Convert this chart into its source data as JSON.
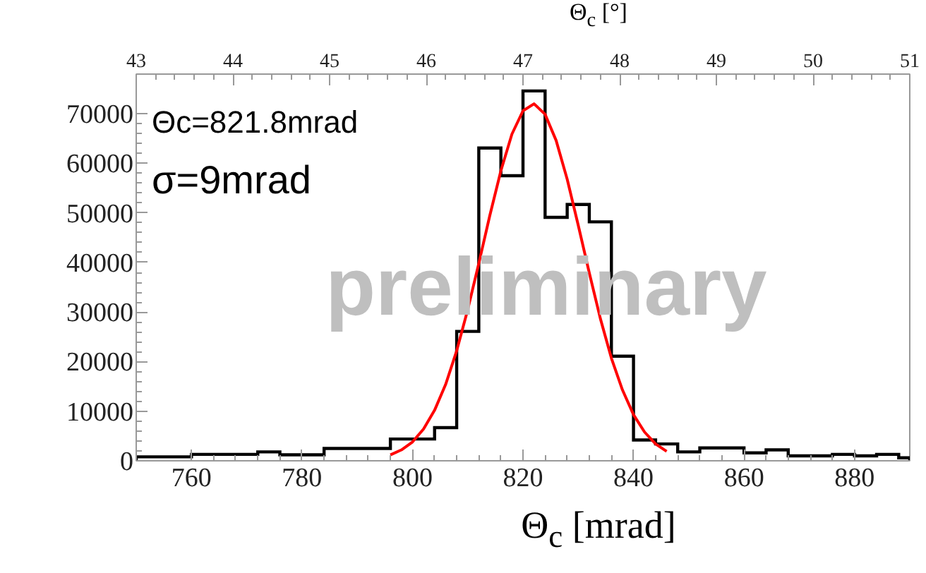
{
  "chart_data": {
    "type": "histogram",
    "xlabel": "Θ$_{c}$ [mrad]",
    "x2label": "Θ$_{c}$ [°]",
    "bins": [
      750,
      760,
      772,
      776,
      784,
      796,
      800,
      804,
      808,
      812,
      816,
      820,
      824,
      828,
      832,
      836,
      840,
      844,
      848,
      852,
      856,
      860,
      864,
      868,
      872,
      876,
      880,
      884,
      888,
      890
    ],
    "values": [
      800,
      1300,
      1800,
      1200,
      2500,
      4400,
      4400,
      6700,
      26100,
      63100,
      57500,
      74600,
      49100,
      51700,
      48200,
      21100,
      4200,
      3400,
      1800,
      2600,
      2600,
      1600,
      2200,
      1000,
      1000,
      1300,
      1000,
      1300,
      600
    ],
    "color": "#000000",
    "series": [
      {
        "type": "line",
        "color": "#ff0000",
        "x": [
          796,
          798,
          800,
          802,
          804,
          806,
          808,
          810,
          812,
          814,
          816,
          818,
          820,
          822,
          824,
          826,
          828,
          830,
          832,
          834,
          836,
          838,
          840,
          842,
          844,
          846
        ],
        "values": [
          1200,
          2200,
          3800,
          6400,
          10200,
          15400,
          22200,
          30500,
          39800,
          49500,
          58500,
          65900,
          70600,
          72000,
          69900,
          64600,
          56800,
          47500,
          37900,
          28700,
          20700,
          14300,
          9300,
          5800,
          3400,
          1900
        ]
      }
    ],
    "xlim": [
      750,
      890
    ],
    "xticks": [
      760,
      780,
      800,
      820,
      840,
      860,
      880
    ],
    "ylim": [
      0,
      78000
    ],
    "yticks": [
      0,
      10000,
      20000,
      30000,
      40000,
      50000,
      60000,
      70000
    ],
    "x2lim": [
      43,
      51
    ],
    "x2ticks": [
      43,
      44,
      45,
      46,
      47,
      48,
      49,
      50,
      51
    ],
    "annotations": [
      "Θc=821.8mrad",
      "σ=9mrad",
      "preliminary"
    ],
    "grid": false
  }
}
